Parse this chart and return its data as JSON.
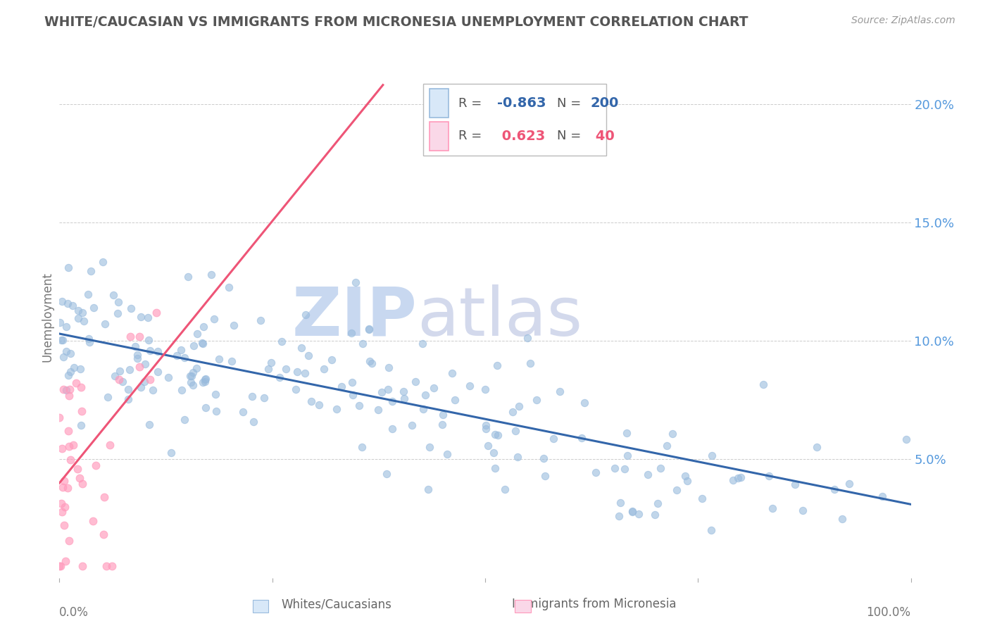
{
  "title": "WHITE/CAUCASIAN VS IMMIGRANTS FROM MICRONESIA UNEMPLOYMENT CORRELATION CHART",
  "source": "Source: ZipAtlas.com",
  "ylabel": "Unemployment",
  "blue_R": -0.863,
  "blue_N": 200,
  "pink_R": 0.623,
  "pink_N": 40,
  "blue_scatter_color": "#99BBDD",
  "pink_scatter_color": "#FF99BB",
  "blue_line_color": "#3366AA",
  "pink_line_color": "#EE5577",
  "background_color": "#FFFFFF",
  "grid_color": "#CCCCCC",
  "xlim": [
    0,
    1
  ],
  "ylim": [
    0.0,
    0.22
  ],
  "yticks": [
    0.05,
    0.1,
    0.15,
    0.2
  ],
  "ytick_labels": [
    "5.0%",
    "10.0%",
    "15.0%",
    "20.0%"
  ],
  "ytick_color": "#5599DD",
  "title_color": "#555555",
  "source_color": "#999999",
  "watermark_zip_color": "#C8D8F0",
  "watermark_atlas_color": "#C8D0E8"
}
